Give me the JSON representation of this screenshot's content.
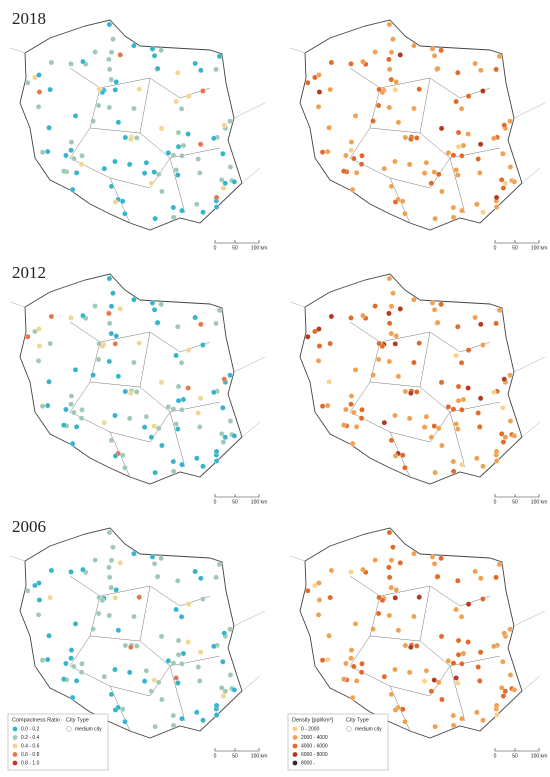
{
  "panels": [
    {
      "year": "2018"
    },
    {
      "year": "2012"
    },
    {
      "year": "2006"
    }
  ],
  "scale_bar": {
    "labels": [
      "0",
      "50",
      "100 km"
    ]
  },
  "legends": {
    "compactness": {
      "title": "Compactness Ratio",
      "city_type_title": "City Type",
      "city_type": "medium city",
      "items": [
        {
          "label": "0.0 - 0.2",
          "color": "#35b4cc"
        },
        {
          "label": "0.2 - 0.4",
          "color": "#9fc9b4"
        },
        {
          "label": "0.4 - 0.6",
          "color": "#f2d58e"
        },
        {
          "label": "0.6 - 0.8",
          "color": "#e8764a"
        },
        {
          "label": "0.8 - 1.0",
          "color": "#c0392b"
        }
      ]
    },
    "density": {
      "title": "Density [ppl/km²]",
      "city_type_title": "City Type",
      "city_type": "medium city",
      "items": [
        {
          "label": "0 - 2000",
          "color": "#f9d28a"
        },
        {
          "label": "2000 - 4000",
          "color": "#f0a050"
        },
        {
          "label": "4000 - 6000",
          "color": "#e06a2a"
        },
        {
          "label": "6000 - 8000",
          "color": "#b33a1e"
        },
        {
          "label": "8000 -",
          "color": "#2b2b3a"
        }
      ]
    }
  }
}
